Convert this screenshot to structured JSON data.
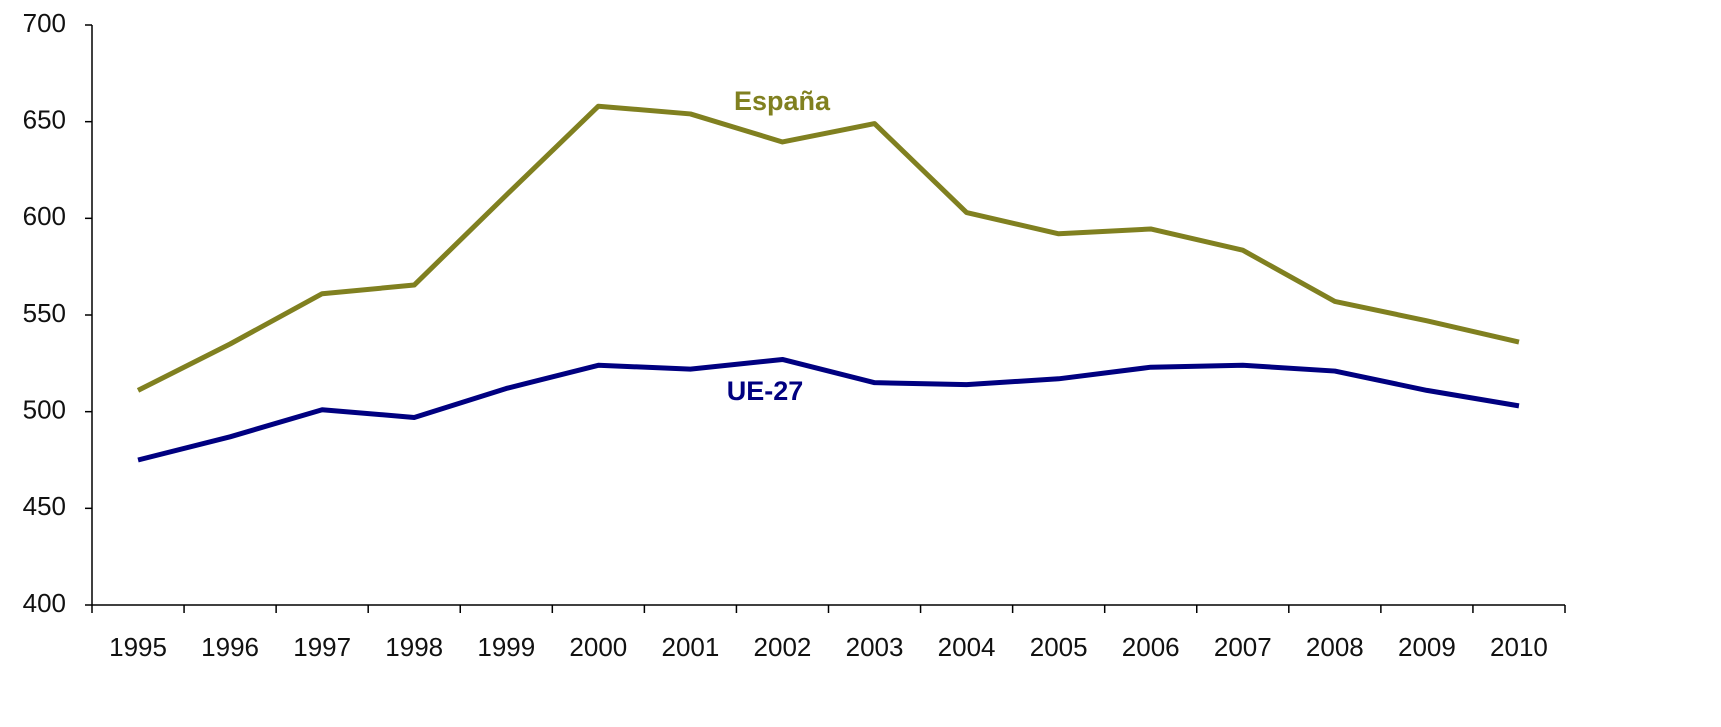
{
  "chart_data": {
    "type": "line",
    "categories": [
      "1995",
      "1996",
      "1997",
      "1998",
      "1999",
      "2000",
      "2001",
      "2002",
      "2003",
      "2004",
      "2005",
      "2006",
      "2007",
      "2008",
      "2009",
      "2010"
    ],
    "series": [
      {
        "name": "España",
        "color": "#808020",
        "values": [
          511,
          535,
          561,
          565.5,
          612,
          658,
          654,
          639.5,
          649,
          603,
          592,
          594.5,
          583.5,
          557,
          547,
          536
        ]
      },
      {
        "name": "UE-27",
        "color": "#000080",
        "values": [
          475,
          487,
          501,
          497,
          512,
          524,
          522,
          527,
          515,
          514,
          517,
          523,
          524,
          521,
          511,
          503
        ]
      }
    ],
    "ylim": [
      400,
      700
    ],
    "yticks": [
      400,
      450,
      500,
      550,
      600,
      650,
      700
    ],
    "grid": false
  }
}
